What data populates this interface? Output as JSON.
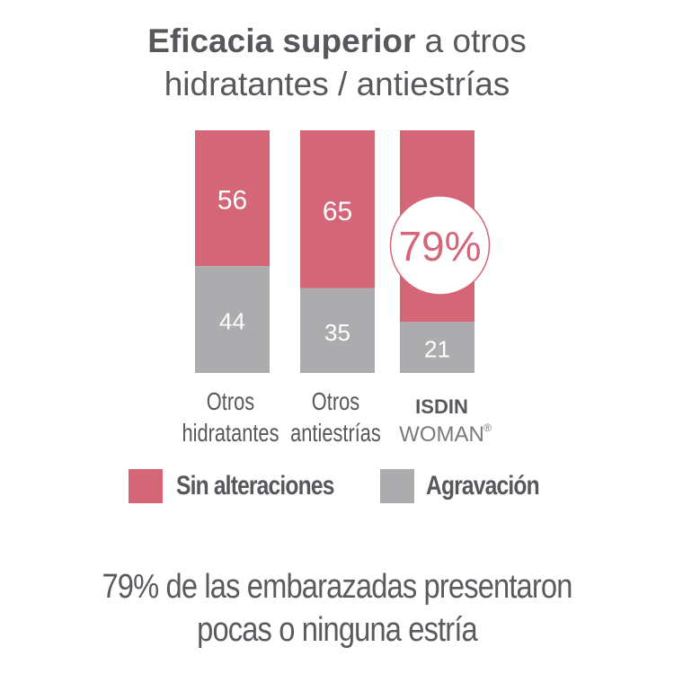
{
  "title": {
    "bold": "Eficacia superior",
    "rest": " a otros",
    "line2": "hidratantes / antiestrías"
  },
  "colors": {
    "pink": "#d46677",
    "gray": "#acabae",
    "text": "#58575c"
  },
  "chart_data": {
    "type": "bar",
    "stacked": true,
    "title": "Eficacia superior a otros hidratantes / antiestrías",
    "categories": [
      {
        "line1": "Otros",
        "line2": "hidratantes",
        "bold": false
      },
      {
        "line1": "Otros",
        "line2": "antiestrías",
        "bold": false
      },
      {
        "line1": "ISDIN",
        "line2": "WOMAN",
        "bold": true,
        "mark": "®"
      }
    ],
    "series": [
      {
        "name": "Sin alteraciones",
        "color": "#d46677",
        "values": [
          56,
          65,
          79
        ]
      },
      {
        "name": "Agravación",
        "color": "#acabae",
        "values": [
          44,
          35,
          21
        ]
      }
    ],
    "highlight": {
      "index": 2,
      "label": "79%"
    },
    "ylim": [
      0,
      100
    ]
  },
  "legend": [
    {
      "label": "Sin alteraciones",
      "color": "#d46677"
    },
    {
      "label": "Agravación",
      "color": "#acabae"
    }
  ],
  "footer": {
    "line1": "79% de las embarazadas presentaron",
    "line2": "pocas o ninguna estría"
  }
}
